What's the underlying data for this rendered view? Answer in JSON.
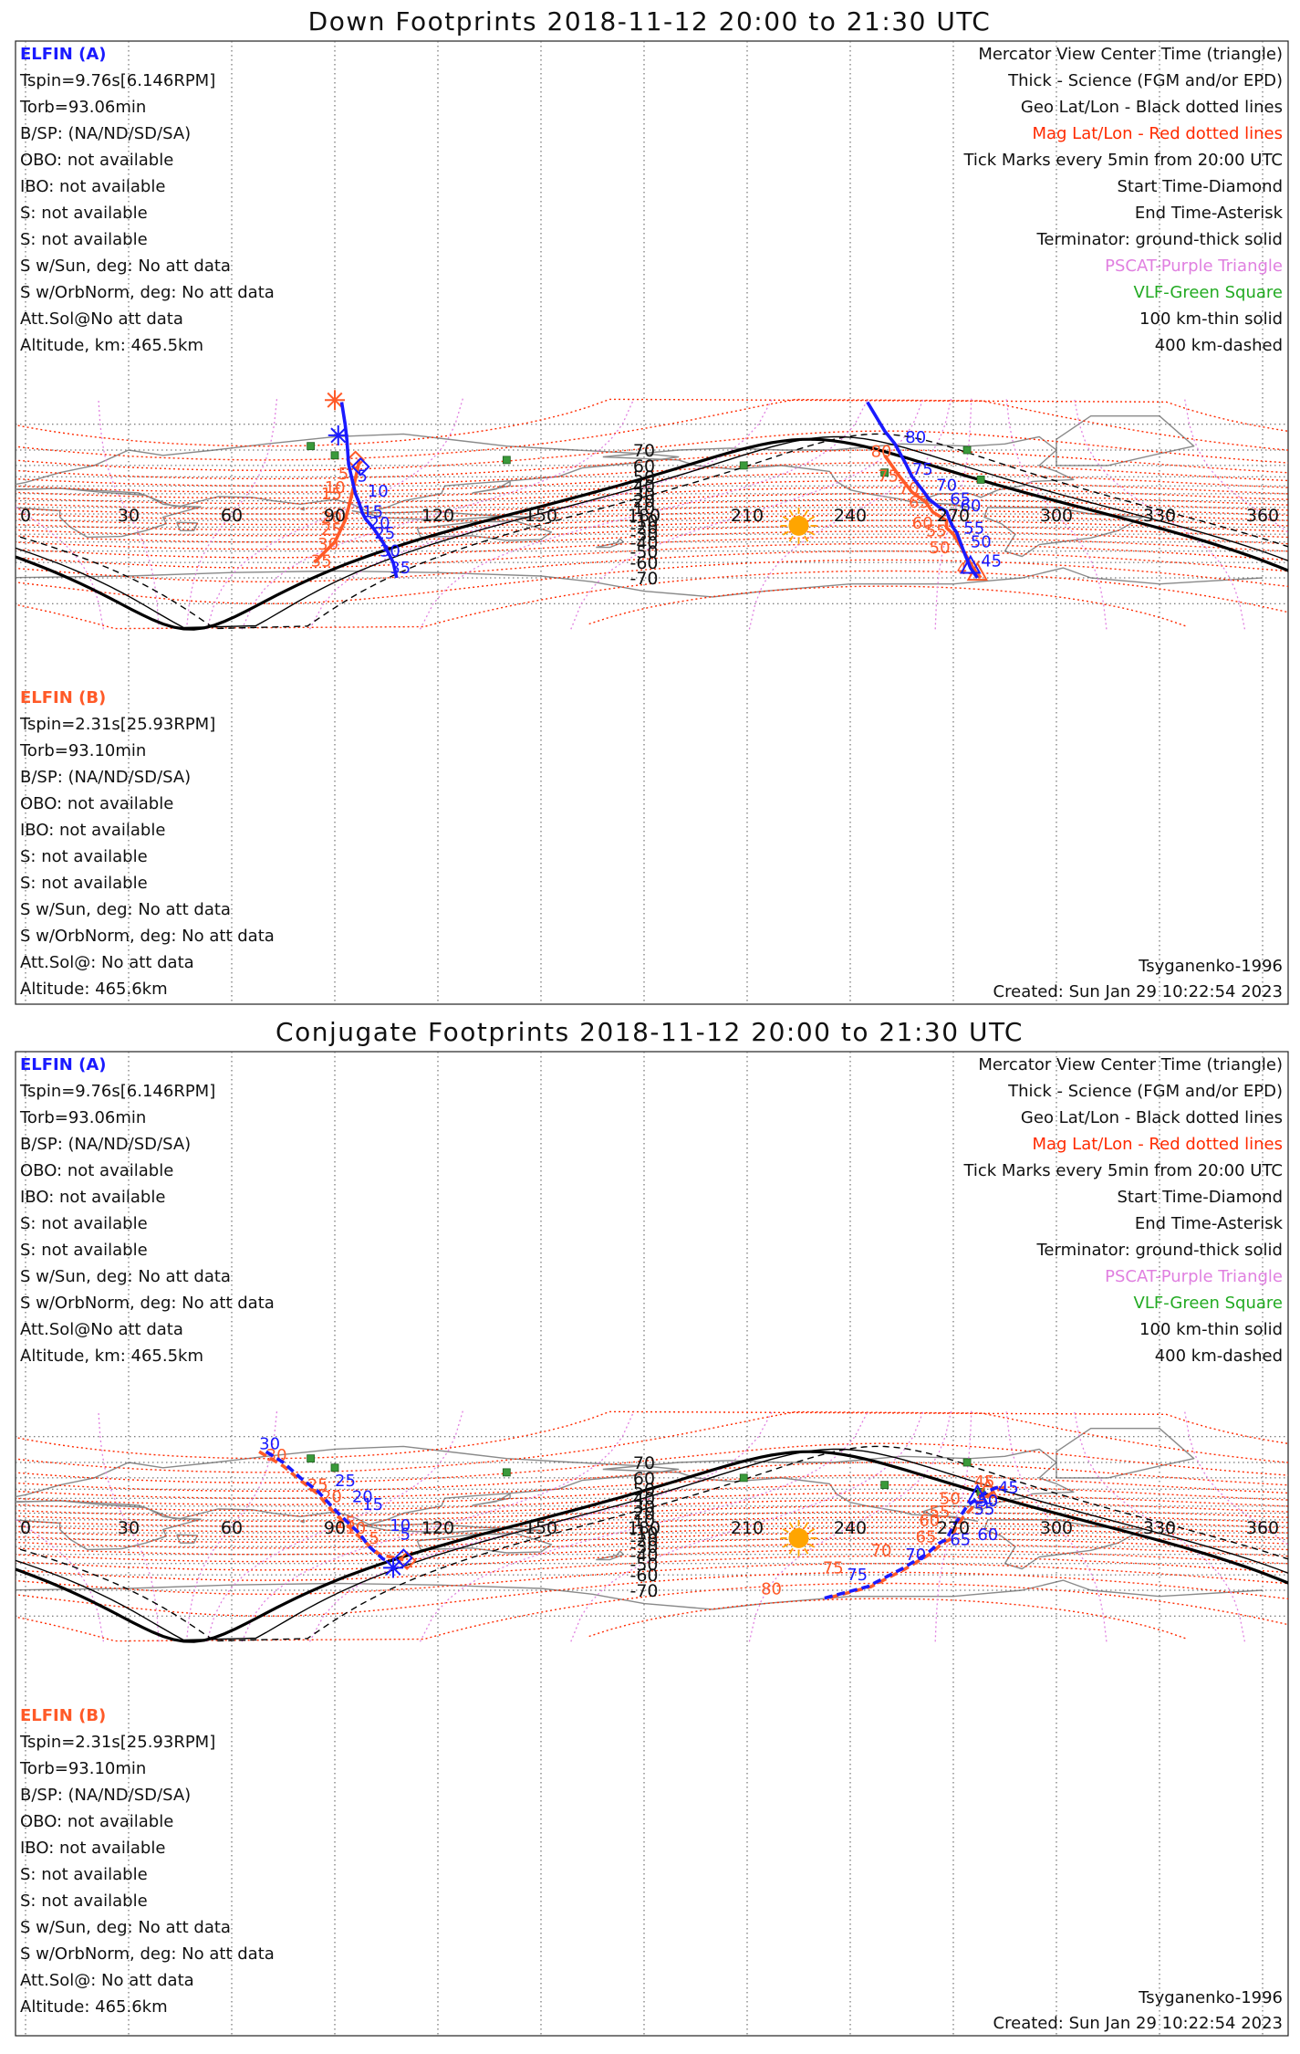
{
  "panels": [
    {
      "id": "down",
      "title": "Down Footprints 2018-11-12 20:00 to 21:30 UTC",
      "left_block_a": {
        "title": "ELFIN (A)",
        "lines": [
          "Tspin=9.76s[6.146RPM]",
          "Torb=93.06min",
          "B/SP: (NA/ND/SD/SA)",
          "OBO: not available",
          "IBO: not available",
          "S: not available",
          "S: not available",
          "S w/Sun, deg: No att data",
          "S w/OrbNorm, deg: No att data",
          "Att.Sol@No att data",
          "Altitude, km: 465.5km"
        ]
      },
      "left_block_b": {
        "title": "ELFIN (B)",
        "lines": [
          "Tspin=2.31s[25.93RPM]",
          "Torb=93.10min",
          "B/SP: (NA/ND/SD/SA)",
          "OBO: not available",
          "IBO: not available",
          "S: not available",
          "S: not available",
          "S w/Sun, deg: No att data",
          "S w/OrbNorm, deg: No att data",
          "Att.Sol@: No att data",
          "Altitude: 465.6km"
        ]
      },
      "legend": [
        {
          "text": "Mercator View Center Time (triangle)",
          "color": "#111111"
        },
        {
          "text": "Thick - Science (FGM and/or EPD)",
          "color": "#111111"
        },
        {
          "text": "Geo Lat/Lon - Black dotted lines",
          "color": "#111111"
        },
        {
          "text": "Mag Lat/Lon - Red dotted lines",
          "color": "#ff2a00"
        },
        {
          "text": "Tick Marks every 5min from 20:00 UTC",
          "color": "#111111"
        },
        {
          "text": "Start Time-Diamond",
          "color": "#111111"
        },
        {
          "text": "End Time-Asterisk",
          "color": "#111111"
        },
        {
          "text": "Terminator: ground-thick solid",
          "color": "#111111"
        },
        {
          "text": "PSCAT-Purple Triangle",
          "color": "#e080e0"
        },
        {
          "text": "VLF-Green Square",
          "color": "#22aa22"
        },
        {
          "text": "100 km-thin solid",
          "color": "#111111"
        },
        {
          "text": "400 km-dashed",
          "color": "#111111"
        }
      ],
      "model": "Tsyganenko-1996",
      "created": "Created: Sun Jan 29 10:22:54 2023",
      "track_a": {
        "points": [
          [
            108,
            -70
          ],
          [
            107,
            -60
          ],
          [
            104,
            -40
          ],
          [
            101,
            -20
          ],
          [
            99,
            -8
          ],
          [
            98,
            2
          ],
          [
            97,
            18
          ],
          [
            96,
            30
          ],
          [
            95,
            48
          ],
          [
            94,
            61
          ],
          [
            93.5,
            75
          ],
          [
            93,
            80
          ],
          [
            92,
            84.5
          ]
        ],
        "labels": [
          {
            "text": "5",
            "lon": 96.5,
            "lat": 45
          },
          {
            "text": "10",
            "lon": 99.5,
            "lat": 26
          },
          {
            "text": "15",
            "lon": 98,
            "lat": -5
          },
          {
            "text": "20",
            "lon": 100,
            "lat": -22
          },
          {
            "text": "25",
            "lon": 101.5,
            "lat": -36
          },
          {
            "text": "30",
            "lon": 103,
            "lat": -55
          },
          {
            "text": "35",
            "lon": 106,
            "lat": -67.5
          }
        ],
        "markers": {
          "diamond": [
            97.5,
            59
          ],
          "asterisk": [
            91,
            76.5
          ]
        }
      },
      "track_b": {
        "points": [
          [
            97,
            64.5
          ],
          [
            97,
            62
          ],
          [
            96,
            48
          ],
          [
            95,
            30
          ],
          [
            94,
            10
          ],
          [
            93,
            -10
          ],
          [
            90,
            -40
          ],
          [
            84,
            -60
          ]
        ],
        "labels": [
          {
            "text": "5",
            "lon": 91,
            "lat": 47.5
          },
          {
            "text": "10",
            "lon": 87,
            "lat": 31
          },
          {
            "text": "15",
            "lon": 86,
            "lat": 22
          },
          {
            "text": "20",
            "lon": 86,
            "lat": -14
          },
          {
            "text": "25",
            "lon": 86,
            "lat": -31
          },
          {
            "text": "30",
            "lon": 85,
            "lat": -48.5
          },
          {
            "text": "35",
            "lon": 83,
            "lat": -63
          }
        ],
        "markers": {
          "diamond": [
            96,
            64
          ],
          "asterisk": [
            90,
            84.8
          ]
        }
      },
      "track_c": {
        "points": [
          [
            245,
            84.5
          ],
          [
            250,
            78
          ],
          [
            253,
            73
          ],
          [
            256,
            62
          ],
          [
            258,
            50
          ],
          [
            261,
            35
          ],
          [
            263,
            22
          ],
          [
            266,
            10
          ],
          [
            268,
            4
          ],
          [
            269,
            -10
          ],
          [
            270,
            -21
          ],
          [
            271,
            -28
          ],
          [
            273,
            -50
          ],
          [
            275,
            -64
          ],
          [
            277,
            -70
          ]
        ],
        "labels": [
          {
            "text": "80",
            "lon": 256,
            "lat": 73.5
          },
          {
            "text": "75",
            "lon": 258,
            "lat": 52
          },
          {
            "text": "70",
            "lon": 265,
            "lat": 34
          },
          {
            "text": "65",
            "lon": 269,
            "lat": 15
          },
          {
            "text": "60",
            "lon": 272,
            "lat": 4
          },
          {
            "text": "55",
            "lon": 273,
            "lat": -29
          },
          {
            "text": "50",
            "lon": 275,
            "lat": -46
          },
          {
            "text": "45",
            "lon": 278,
            "lat": -63
          }
        ],
        "markers": {
          "triangle": [
            275,
            -63
          ]
        }
      },
      "track_d": {
        "points": [
          [
            278,
            -70
          ],
          [
            276,
            -65
          ],
          [
            273,
            -50
          ],
          [
            270,
            -30
          ],
          [
            268,
            -21
          ],
          [
            268,
            -10
          ],
          [
            264,
            3
          ],
          [
            262,
            18
          ],
          [
            258,
            32
          ],
          [
            254,
            52
          ],
          [
            250,
            67
          ]
        ],
        "labels": [
          {
            "text": "80",
            "lon": 246,
            "lat": 66
          },
          {
            "text": "75",
            "lon": 248,
            "lat": 45
          },
          {
            "text": "70",
            "lon": 254,
            "lat": 30
          },
          {
            "text": "65",
            "lon": 257,
            "lat": 10
          },
          {
            "text": "60",
            "lon": 258,
            "lat": -22
          },
          {
            "text": "55",
            "lon": 262,
            "lat": -33
          },
          {
            "text": "50",
            "lon": 263,
            "lat": -52
          },
          {
            "text": "45",
            "lon": 271,
            "lat": -68
          }
        ],
        "markers": {
          "triangle": [
            277,
            -67.5
          ]
        }
      },
      "vlf": [
        [
          83,
          72
        ],
        [
          90,
          67
        ],
        [
          140,
          64
        ],
        [
          209,
          60
        ],
        [
          250,
          54
        ],
        [
          278,
          47
        ],
        [
          274,
          70
        ]
      ]
    },
    {
      "id": "conjugate",
      "title": "Conjugate Footprints 2018-11-12 20:00 to 21:30 UTC",
      "left_block_a": {
        "title": "ELFIN (A)",
        "lines": [
          "Tspin=9.76s[6.146RPM]",
          "Torb=93.06min",
          "B/SP: (NA/ND/SD/SA)",
          "OBO: not available",
          "IBO: not available",
          "S: not available",
          "S: not available",
          "S w/Sun, deg: No att data",
          "S w/OrbNorm, deg: No att data",
          "Att.Sol@No att data",
          "Altitude, km: 465.5km"
        ]
      },
      "left_block_b": {
        "title": "ELFIN (B)",
        "lines": [
          "Tspin=2.31s[25.93RPM]",
          "Torb=93.10min",
          "B/SP: (NA/ND/SD/SA)",
          "OBO: not available",
          "IBO: not available",
          "S: not available",
          "S: not available",
          "S w/Sun, deg: No att data",
          "S w/OrbNorm, deg: No att data",
          "Att.Sol@: No att data",
          "Altitude: 465.6km"
        ]
      },
      "legend": [
        {
          "text": "Mercator View Center Time (triangle)",
          "color": "#111111"
        },
        {
          "text": "Thick - Science (FGM and/or EPD)",
          "color": "#111111"
        },
        {
          "text": "Geo Lat/Lon - Black dotted lines",
          "color": "#111111"
        },
        {
          "text": "Mag Lat/Lon - Red dotted lines",
          "color": "#ff2a00"
        },
        {
          "text": "Tick Marks every 5min from 20:00 UTC",
          "color": "#111111"
        },
        {
          "text": "Start Time-Diamond",
          "color": "#111111"
        },
        {
          "text": "End Time-Asterisk",
          "color": "#111111"
        },
        {
          "text": "Terminator: ground-thick solid",
          "color": "#111111"
        },
        {
          "text": "PSCAT-Purple Triangle",
          "color": "#e080e0"
        },
        {
          "text": "VLF-Green Square",
          "color": "#22aa22"
        },
        {
          "text": "100 km-thin solid",
          "color": "#111111"
        },
        {
          "text": "400 km-dashed",
          "color": "#111111"
        }
      ],
      "model": "Tsyganenko-1996",
      "created": "Created: Sun Jan 29 10:22:54 2023",
      "track_a": {
        "points": [
          [
            70,
            75
          ],
          [
            75,
            70
          ],
          [
            80,
            60
          ],
          [
            85,
            48
          ],
          [
            88,
            35
          ],
          [
            91,
            20
          ],
          [
            94,
            5
          ],
          [
            97,
            -10
          ],
          [
            100,
            -30
          ],
          [
            104,
            -45
          ],
          [
            106,
            -48
          ]
        ],
        "labels": [
          {
            "text": "30",
            "lon": 68,
            "lat": 76
          },
          {
            "text": "25",
            "lon": 90,
            "lat": 53
          },
          {
            "text": "20",
            "lon": 95,
            "lat": 35
          },
          {
            "text": "15",
            "lon": 98,
            "lat": 25
          },
          {
            "text": "10",
            "lon": 106,
            "lat": -7
          },
          {
            "text": "5",
            "lon": 109,
            "lat": -20
          }
        ],
        "markers": {
          "diamond": [
            110,
            -44
          ],
          "asterisk": [
            107,
            -54
          ]
        }
      },
      "track_b": {
        "points": [
          [
            68,
            75
          ],
          [
            75,
            68
          ],
          [
            80,
            58
          ],
          [
            85,
            45
          ],
          [
            88,
            30
          ],
          [
            91,
            15
          ],
          [
            94,
            0
          ],
          [
            98,
            -20
          ],
          [
            103,
            -40
          ],
          [
            110,
            -46
          ]
        ],
        "labels": [
          {
            "text": "30",
            "lon": 70,
            "lat": 71
          },
          {
            "text": "25",
            "lon": 82,
            "lat": 49
          },
          {
            "text": "20",
            "lon": 86,
            "lat": 35
          },
          {
            "text": "15",
            "lon": 90,
            "lat": -3
          },
          {
            "text": "10",
            "lon": 93,
            "lat": -11
          },
          {
            "text": "5",
            "lon": 100,
            "lat": -26
          }
        ],
        "markers": {
          "diamond": [
            111,
            -47
          ]
        }
      },
      "track_c": {
        "points": [
          [
            283,
            52
          ],
          [
            280,
            48
          ],
          [
            277,
            40
          ],
          [
            274,
            30
          ],
          [
            272,
            15
          ],
          [
            270,
            0
          ],
          [
            268,
            -20
          ],
          [
            266,
            -25
          ],
          [
            262,
            -40
          ],
          [
            255,
            -55
          ],
          [
            245,
            -68
          ],
          [
            232,
            -74
          ]
        ],
        "labels": [
          {
            "text": "45",
            "lon": 283,
            "lat": 46
          },
          {
            "text": "50",
            "lon": 277,
            "lat": 30
          },
          {
            "text": "55",
            "lon": 276,
            "lat": 18
          },
          {
            "text": "60",
            "lon": 277,
            "lat": -21
          },
          {
            "text": "65",
            "lon": 269,
            "lat": -28
          },
          {
            "text": "70",
            "lon": 256,
            "lat": -46.5
          },
          {
            "text": "75",
            "lon": 239,
            "lat": -64
          }
        ],
        "markers": {
          "triangle": [
            277,
            43
          ]
        }
      },
      "track_d": {
        "points": [
          [
            285,
            52
          ],
          [
            282,
            48
          ],
          [
            279,
            40
          ],
          [
            276,
            30
          ],
          [
            273,
            15
          ],
          [
            271,
            0
          ],
          [
            269,
            -20
          ],
          [
            267,
            -25
          ],
          [
            263,
            -40
          ],
          [
            256,
            -55
          ],
          [
            246,
            -68
          ],
          [
            233,
            -74
          ]
        ],
        "labels": [
          {
            "text": "45",
            "lon": 276,
            "lat": 52
          },
          {
            "text": "50",
            "lon": 266,
            "lat": 33
          },
          {
            "text": "55",
            "lon": 263,
            "lat": 14
          },
          {
            "text": "60",
            "lon": 260,
            "lat": 1
          },
          {
            "text": "65",
            "lon": 259,
            "lat": -24
          },
          {
            "text": "70",
            "lon": 246,
            "lat": -42
          },
          {
            "text": "75",
            "lon": 232,
            "lat": -59
          },
          {
            "text": "80",
            "lon": 214,
            "lat": -72
          }
        ],
        "markers": {
          "triangle": [
            280,
            48.5
          ]
        }
      },
      "vlf": [
        [
          83,
          72
        ],
        [
          90,
          67
        ],
        [
          140,
          64
        ],
        [
          209,
          60
        ],
        [
          250,
          54
        ],
        [
          278,
          47
        ],
        [
          274,
          70
        ]
      ]
    }
  ],
  "colors": {
    "elfin_a": "#1a1aff",
    "elfin_b": "#ff5a28",
    "mag_grid": "#ff2a00",
    "mag_lon": "#e080e0",
    "vlf": "#3a9a3a",
    "sun": "#ffa500",
    "coast": "#8a8a8a"
  },
  "axis": {
    "lon_ticks": [
      "0",
      "30",
      "60",
      "90",
      "120",
      "150",
      "180",
      "210",
      "240",
      "270",
      "300",
      "330",
      "360"
    ],
    "lat_ticks": [
      {
        "text": "70",
        "lat": 70
      },
      {
        "text": "60",
        "lat": 60
      },
      {
        "text": "50",
        "lat": 50
      },
      {
        "text": "40",
        "lat": 40
      },
      {
        "text": "30",
        "lat": 30
      },
      {
        "text": "20",
        "lat": 20
      },
      {
        "text": "10",
        "lat": 10
      },
      {
        "text": "-10",
        "lat": -10
      },
      {
        "text": "-20",
        "lat": -20
      },
      {
        "text": "-30",
        "lat": -30
      },
      {
        "text": "-40",
        "lat": -40
      },
      {
        "text": "-50",
        "lat": -50
      },
      {
        "text": "-60",
        "lat": -60
      },
      {
        "text": "-70",
        "lat": -70
      }
    ]
  },
  "sun": {
    "lon": 225,
    "lat": -18,
    "icon": "sun-icon"
  },
  "icons": [
    "sun-icon",
    "diamond-start-icon",
    "asterisk-end-icon",
    "triangle-center-icon",
    "vlf-square-icon"
  ]
}
